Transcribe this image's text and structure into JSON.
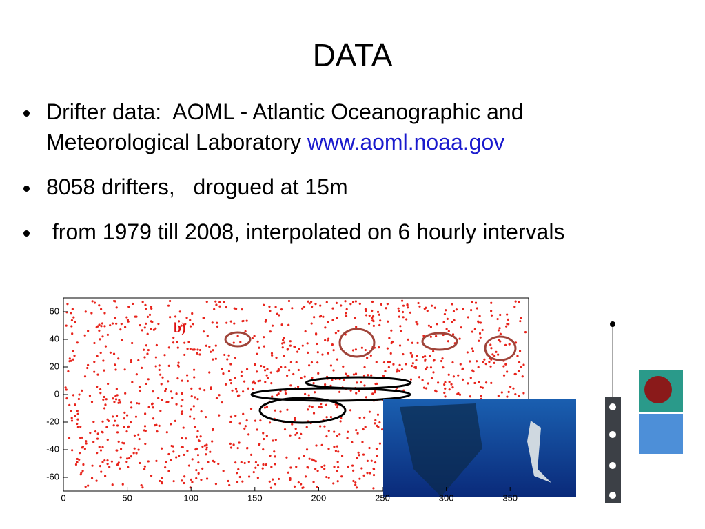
{
  "title": "DATA",
  "bullets": [
    {
      "text": "Drifter data:  AOML - Atlantic Oceanographic and Meteorological Laboratory ",
      "link": "www.aoml.noaa.gov"
    },
    {
      "text": "8058 drifters,   drogued at 15m"
    },
    {
      "text": " from 1979 till 2008, interpolated on 6 hourly intervals"
    }
  ],
  "figure": {
    "label": "b)",
    "xticks": [
      0,
      50,
      100,
      150,
      200,
      250,
      300,
      350
    ],
    "yticks": [
      60,
      40,
      20,
      0,
      -20,
      -40,
      -60
    ]
  }
}
